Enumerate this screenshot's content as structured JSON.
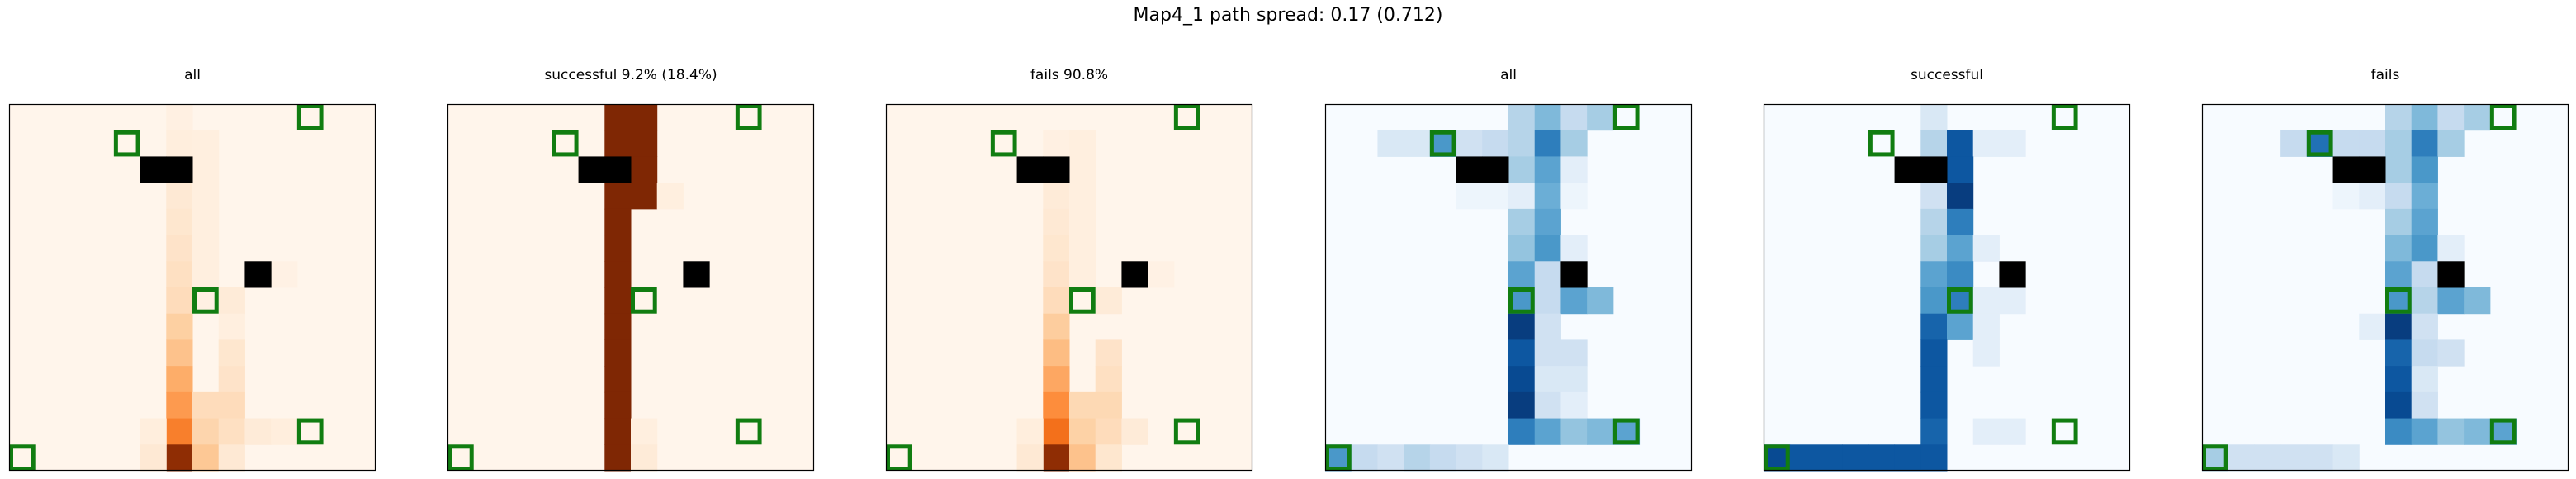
{
  "suptitle": "Map4_1 path spread: 0.17 (0.712)",
  "colors": {
    "green": "#117d11",
    "black": "#000000"
  },
  "chart_data": [
    {
      "type": "heatmap",
      "title": "all",
      "colormap": "Oranges",
      "grid_size": [
        14,
        14
      ],
      "heat_cells": [
        [
          0,
          6,
          0.04
        ],
        [
          1,
          6,
          0.06
        ],
        [
          2,
          6,
          0.06
        ],
        [
          3,
          6,
          0.1
        ],
        [
          4,
          6,
          0.12
        ],
        [
          5,
          6,
          0.14
        ],
        [
          6,
          6,
          0.16
        ],
        [
          7,
          6,
          0.18
        ],
        [
          8,
          6,
          0.25
        ],
        [
          9,
          6,
          0.3
        ],
        [
          10,
          6,
          0.38
        ],
        [
          11,
          6,
          0.45
        ],
        [
          12,
          6,
          0.55
        ],
        [
          13,
          6,
          0.95
        ],
        [
          12,
          5,
          0.06
        ],
        [
          13,
          5,
          0.1
        ],
        [
          1,
          7,
          0.05
        ],
        [
          2,
          7,
          0.05
        ],
        [
          3,
          7,
          0.05
        ],
        [
          4,
          7,
          0.05
        ],
        [
          5,
          7,
          0.05
        ],
        [
          6,
          7,
          0.05
        ],
        [
          7,
          7,
          0.04
        ],
        [
          11,
          7,
          0.18
        ],
        [
          12,
          7,
          0.22
        ],
        [
          13,
          7,
          0.28
        ],
        [
          7,
          8,
          0.08
        ],
        [
          8,
          8,
          0.05
        ],
        [
          9,
          8,
          0.12
        ],
        [
          10,
          8,
          0.14
        ],
        [
          11,
          8,
          0.18
        ],
        [
          12,
          8,
          0.16
        ],
        [
          13,
          8,
          0.1
        ],
        [
          12,
          9,
          0.08
        ],
        [
          6,
          9,
          0.03
        ],
        [
          6,
          10,
          0.03
        ],
        [
          12,
          10,
          0.06
        ]
      ],
      "obstacles": [
        [
          2,
          5
        ],
        [
          2,
          6
        ],
        [
          6,
          9
        ]
      ],
      "targets": [
        [
          0,
          11
        ],
        [
          1,
          4
        ],
        [
          7,
          7
        ],
        [
          12,
          11
        ],
        [
          13,
          0
        ]
      ]
    },
    {
      "type": "heatmap",
      "title": "successful 9.2% (18.4%)",
      "colormap": "Oranges",
      "grid_size": [
        14,
        14
      ],
      "heat_cells": [
        [
          0,
          6,
          1.0
        ],
        [
          1,
          6,
          1.0
        ],
        [
          2,
          6,
          1.0
        ],
        [
          3,
          6,
          1.0
        ],
        [
          4,
          6,
          1.0
        ],
        [
          5,
          6,
          1.0
        ],
        [
          6,
          6,
          1.0
        ],
        [
          7,
          6,
          1.0
        ],
        [
          8,
          6,
          1.0
        ],
        [
          9,
          6,
          1.0
        ],
        [
          10,
          6,
          1.0
        ],
        [
          11,
          6,
          1.0
        ],
        [
          12,
          6,
          1.0
        ],
        [
          13,
          6,
          1.0
        ],
        [
          0,
          7,
          1.0
        ],
        [
          1,
          7,
          1.0
        ],
        [
          2,
          7,
          1.0
        ],
        [
          3,
          7,
          1.0
        ],
        [
          3,
          8,
          0.05
        ],
        [
          12,
          7,
          0.05
        ],
        [
          13,
          7,
          0.08
        ]
      ],
      "obstacles": [
        [
          2,
          5
        ],
        [
          2,
          6
        ],
        [
          6,
          9
        ]
      ],
      "targets": [
        [
          0,
          11
        ],
        [
          1,
          4
        ],
        [
          7,
          7
        ],
        [
          12,
          11
        ],
        [
          13,
          0
        ]
      ]
    },
    {
      "type": "heatmap",
      "title": "fails 90.8%",
      "colormap": "Oranges",
      "grid_size": [
        14,
        14
      ],
      "heat_cells": [
        [
          1,
          6,
          0.04
        ],
        [
          3,
          6,
          0.08
        ],
        [
          4,
          6,
          0.1
        ],
        [
          5,
          6,
          0.12
        ],
        [
          6,
          6,
          0.14
        ],
        [
          7,
          6,
          0.18
        ],
        [
          8,
          6,
          0.26
        ],
        [
          9,
          6,
          0.32
        ],
        [
          10,
          6,
          0.4
        ],
        [
          11,
          6,
          0.5
        ],
        [
          12,
          6,
          0.6
        ],
        [
          13,
          6,
          0.95
        ],
        [
          12,
          5,
          0.06
        ],
        [
          13,
          5,
          0.1
        ],
        [
          1,
          7,
          0.05
        ],
        [
          2,
          7,
          0.05
        ],
        [
          3,
          7,
          0.05
        ],
        [
          4,
          7,
          0.05
        ],
        [
          5,
          7,
          0.05
        ],
        [
          6,
          7,
          0.05
        ],
        [
          11,
          7,
          0.2
        ],
        [
          12,
          7,
          0.24
        ],
        [
          13,
          7,
          0.3
        ],
        [
          7,
          8,
          0.08
        ],
        [
          9,
          8,
          0.14
        ],
        [
          10,
          8,
          0.16
        ],
        [
          11,
          8,
          0.2
        ],
        [
          12,
          8,
          0.18
        ],
        [
          13,
          8,
          0.12
        ],
        [
          12,
          9,
          0.08
        ],
        [
          6,
          9,
          0.03
        ],
        [
          6,
          10,
          0.03
        ]
      ],
      "obstacles": [
        [
          2,
          5
        ],
        [
          2,
          6
        ],
        [
          6,
          9
        ]
      ],
      "targets": [
        [
          0,
          11
        ],
        [
          1,
          4
        ],
        [
          7,
          7
        ],
        [
          12,
          11
        ],
        [
          13,
          0
        ]
      ]
    },
    {
      "type": "heatmap",
      "title": "all",
      "colormap": "Blues",
      "grid_size": [
        14,
        14
      ],
      "heat_cells": [
        [
          0,
          7,
          0.3
        ],
        [
          0,
          8,
          0.45
        ],
        [
          0,
          9,
          0.25
        ],
        [
          0,
          10,
          0.35
        ],
        [
          1,
          5,
          0.2
        ],
        [
          1,
          6,
          0.25
        ],
        [
          1,
          7,
          0.3
        ],
        [
          1,
          8,
          0.7
        ],
        [
          1,
          9,
          0.35
        ],
        [
          2,
          7,
          0.35
        ],
        [
          2,
          8,
          0.55
        ],
        [
          2,
          9,
          0.1
        ],
        [
          3,
          5,
          0.05
        ],
        [
          3,
          6,
          0.05
        ],
        [
          3,
          7,
          0.1
        ],
        [
          3,
          8,
          0.5
        ],
        [
          3,
          9,
          0.05
        ],
        [
          4,
          7,
          0.35
        ],
        [
          4,
          8,
          0.55
        ],
        [
          5,
          7,
          0.4
        ],
        [
          5,
          8,
          0.6
        ],
        [
          5,
          9,
          0.1
        ],
        [
          6,
          7,
          0.55
        ],
        [
          6,
          8,
          0.25
        ],
        [
          7,
          7,
          0.6
        ],
        [
          7,
          8,
          0.25
        ],
        [
          7,
          9,
          0.55
        ],
        [
          7,
          10,
          0.45
        ],
        [
          8,
          7,
          0.95
        ],
        [
          8,
          8,
          0.2
        ],
        [
          9,
          7,
          0.85
        ],
        [
          9,
          8,
          0.2
        ],
        [
          9,
          9,
          0.2
        ],
        [
          10,
          7,
          0.9
        ],
        [
          10,
          8,
          0.15
        ],
        [
          10,
          9,
          0.15
        ],
        [
          11,
          7,
          0.95
        ],
        [
          11,
          8,
          0.2
        ],
        [
          11,
          9,
          0.1
        ],
        [
          12,
          7,
          0.7
        ],
        [
          12,
          8,
          0.55
        ],
        [
          12,
          9,
          0.4
        ],
        [
          12,
          10,
          0.45
        ],
        [
          12,
          11,
          0.55
        ],
        [
          13,
          0,
          0.6
        ],
        [
          13,
          1,
          0.25
        ],
        [
          13,
          2,
          0.2
        ],
        [
          13,
          3,
          0.3
        ],
        [
          13,
          4,
          0.25
        ],
        [
          13,
          5,
          0.2
        ],
        [
          13,
          6,
          0.15
        ],
        [
          1,
          2,
          0.15
        ],
        [
          1,
          3,
          0.15
        ],
        [
          1,
          4,
          0.6
        ]
      ],
      "obstacles": [
        [
          2,
          5
        ],
        [
          2,
          6
        ],
        [
          6,
          9
        ]
      ],
      "targets": [
        [
          0,
          11
        ],
        [
          1,
          4
        ],
        [
          7,
          7
        ],
        [
          12,
          11
        ],
        [
          13,
          0
        ]
      ]
    },
    {
      "type": "heatmap",
      "title": "successful",
      "colormap": "Blues",
      "grid_size": [
        14,
        14
      ],
      "heat_cells": [
        [
          0,
          6,
          0.15
        ],
        [
          1,
          6,
          0.3
        ],
        [
          1,
          7,
          0.85
        ],
        [
          1,
          8,
          0.1
        ],
        [
          1,
          9,
          0.1
        ],
        [
          2,
          6,
          0.3
        ],
        [
          2,
          7,
          0.85
        ],
        [
          3,
          6,
          0.2
        ],
        [
          3,
          7,
          0.95
        ],
        [
          4,
          6,
          0.3
        ],
        [
          4,
          7,
          0.7
        ],
        [
          5,
          6,
          0.35
        ],
        [
          5,
          7,
          0.55
        ],
        [
          5,
          8,
          0.1
        ],
        [
          6,
          6,
          0.55
        ],
        [
          6,
          7,
          0.65
        ],
        [
          7,
          6,
          0.6
        ],
        [
          7,
          7,
          0.7
        ],
        [
          7,
          8,
          0.1
        ],
        [
          7,
          9,
          0.1
        ],
        [
          8,
          6,
          0.8
        ],
        [
          8,
          7,
          0.55
        ],
        [
          8,
          8,
          0.1
        ],
        [
          9,
          6,
          0.85
        ],
        [
          9,
          8,
          0.1
        ],
        [
          10,
          6,
          0.85
        ],
        [
          11,
          6,
          0.85
        ],
        [
          12,
          6,
          0.8
        ],
        [
          12,
          8,
          0.1
        ],
        [
          12,
          9,
          0.1
        ],
        [
          13,
          0,
          0.9
        ],
        [
          13,
          1,
          0.85
        ],
        [
          13,
          2,
          0.85
        ],
        [
          13,
          3,
          0.85
        ],
        [
          13,
          4,
          0.85
        ],
        [
          13,
          5,
          0.85
        ],
        [
          13,
          6,
          0.85
        ]
      ],
      "obstacles": [
        [
          2,
          5
        ],
        [
          2,
          6
        ],
        [
          6,
          9
        ]
      ],
      "targets": [
        [
          0,
          11
        ],
        [
          1,
          4
        ],
        [
          7,
          7
        ],
        [
          12,
          11
        ],
        [
          13,
          0
        ]
      ]
    },
    {
      "type": "heatmap",
      "title": "fails",
      "colormap": "Blues",
      "grid_size": [
        14,
        14
      ],
      "heat_cells": [
        [
          0,
          7,
          0.3
        ],
        [
          0,
          8,
          0.45
        ],
        [
          0,
          9,
          0.25
        ],
        [
          0,
          10,
          0.35
        ],
        [
          1,
          3,
          0.25
        ],
        [
          1,
          4,
          0.75
        ],
        [
          1,
          5,
          0.25
        ],
        [
          1,
          6,
          0.25
        ],
        [
          1,
          7,
          0.35
        ],
        [
          1,
          8,
          0.7
        ],
        [
          1,
          9,
          0.35
        ],
        [
          2,
          7,
          0.35
        ],
        [
          2,
          8,
          0.6
        ],
        [
          3,
          5,
          0.05
        ],
        [
          3,
          6,
          0.1
        ],
        [
          3,
          7,
          0.25
        ],
        [
          3,
          8,
          0.5
        ],
        [
          4,
          7,
          0.35
        ],
        [
          4,
          8,
          0.55
        ],
        [
          5,
          7,
          0.45
        ],
        [
          5,
          8,
          0.6
        ],
        [
          5,
          9,
          0.1
        ],
        [
          6,
          7,
          0.55
        ],
        [
          6,
          8,
          0.25
        ],
        [
          7,
          7,
          0.6
        ],
        [
          7,
          8,
          0.3
        ],
        [
          7,
          9,
          0.55
        ],
        [
          7,
          10,
          0.45
        ],
        [
          8,
          6,
          0.1
        ],
        [
          8,
          7,
          0.95
        ],
        [
          8,
          8,
          0.2
        ],
        [
          9,
          7,
          0.8
        ],
        [
          9,
          8,
          0.25
        ],
        [
          9,
          9,
          0.2
        ],
        [
          10,
          7,
          0.85
        ],
        [
          10,
          8,
          0.15
        ],
        [
          11,
          7,
          0.9
        ],
        [
          11,
          8,
          0.2
        ],
        [
          12,
          7,
          0.65
        ],
        [
          12,
          8,
          0.55
        ],
        [
          12,
          9,
          0.4
        ],
        [
          12,
          10,
          0.45
        ],
        [
          12,
          11,
          0.55
        ],
        [
          13,
          0,
          0.35
        ],
        [
          13,
          1,
          0.2
        ],
        [
          13,
          2,
          0.2
        ],
        [
          13,
          3,
          0.2
        ],
        [
          13,
          4,
          0.2
        ],
        [
          13,
          5,
          0.15
        ]
      ],
      "obstacles": [
        [
          2,
          5
        ],
        [
          2,
          6
        ],
        [
          6,
          9
        ]
      ],
      "targets": [
        [
          0,
          11
        ],
        [
          1,
          4
        ],
        [
          7,
          7
        ],
        [
          12,
          11
        ],
        [
          13,
          0
        ]
      ]
    }
  ]
}
